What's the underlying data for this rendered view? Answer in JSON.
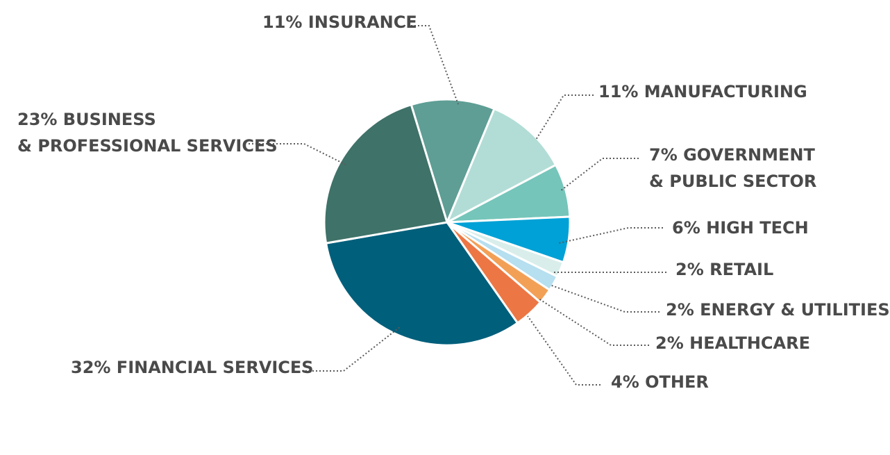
{
  "chart_data": {
    "type": "pie",
    "slices": [
      {
        "label": "11% INSURANCE",
        "lines": [
          "11% INSURANCE"
        ],
        "value": 11,
        "color": "#5e9e95"
      },
      {
        "label": "11% MANUFACTURING",
        "lines": [
          "11% MANUFACTURING"
        ],
        "value": 11,
        "color": "#b2ddd6"
      },
      {
        "label": "7% GOVERNMENT & PUBLIC SECTOR",
        "lines": [
          "7% GOVERNMENT",
          "& PUBLIC SECTOR"
        ],
        "value": 7,
        "color": "#75c5ba"
      },
      {
        "label": "6% HIGH TECH",
        "lines": [
          "6% HIGH TECH"
        ],
        "value": 6,
        "color": "#00a1d6"
      },
      {
        "label": "2% RETAIL",
        "lines": [
          "2% RETAIL"
        ],
        "value": 2,
        "color": "#d9eeea"
      },
      {
        "label": "2% ENERGY & UTILITIES",
        "lines": [
          "2% ENERGY & UTILITIES"
        ],
        "value": 2,
        "color": "#b6dff0"
      },
      {
        "label": "2% HEALTHCARE",
        "lines": [
          "2% HEALTHCARE"
        ],
        "value": 2,
        "color": "#f3a057"
      },
      {
        "label": "4% OTHER",
        "lines": [
          "4% OTHER"
        ],
        "value": 4,
        "color": "#ec7744"
      },
      {
        "label": "32% FINANCIAL SERVICES",
        "lines": [
          "32% FINANCIAL SERVICES"
        ],
        "value": 32,
        "color": "#005f7b"
      },
      {
        "label": "23% BUSINESS & PROFESSIONAL SERVICES",
        "lines": [
          "23% BUSINESS",
          "& PROFESSIONAL SERVICES"
        ],
        "value": 23,
        "color": "#3f7269"
      }
    ]
  }
}
